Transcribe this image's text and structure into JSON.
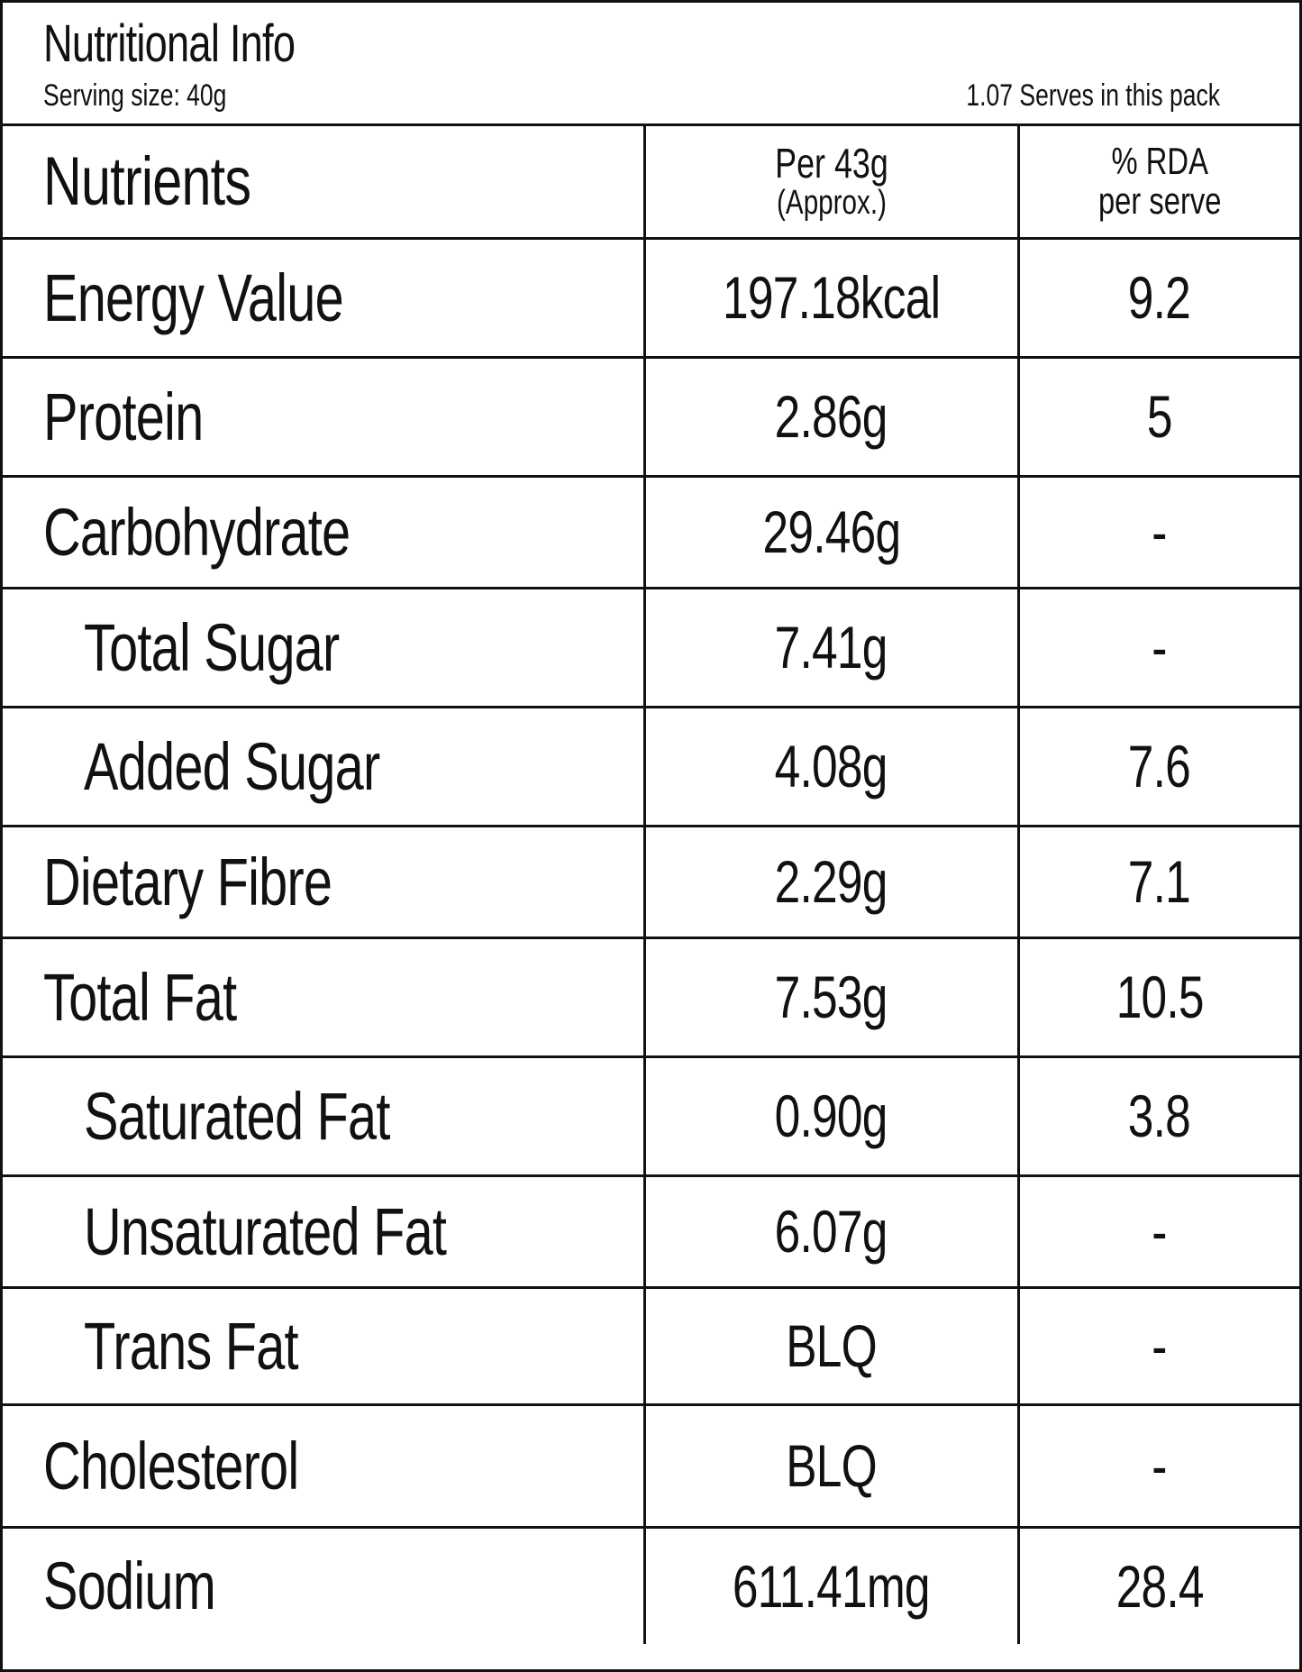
{
  "header": {
    "title": "Nutritional Info",
    "serving_size": "Serving  size: 40g",
    "serves": "1.07 Serves in this pack"
  },
  "columns": {
    "nutrients": "Nutrients",
    "per_line1": "Per 43g",
    "per_line2": "(Approx.)",
    "rda_line1": "% RDA",
    "rda_line2": "per serve"
  },
  "rows": [
    {
      "name": "Energy Value",
      "per": "197.18kcal",
      "rda": "9.2",
      "sub": false
    },
    {
      "name": "Protein",
      "per": "2.86g",
      "rda": "5",
      "sub": false
    },
    {
      "name": "Carbohydrate",
      "per": "29.46g",
      "rda": "-",
      "sub": false
    },
    {
      "name": "Total Sugar",
      "per": "7.41g",
      "rda": "-",
      "sub": true
    },
    {
      "name": "Added Sugar",
      "per": "4.08g",
      "rda": "7.6",
      "sub": true
    },
    {
      "name": "Dietary Fibre",
      "per": "2.29g",
      "rda": "7.1",
      "sub": false
    },
    {
      "name": "Total Fat",
      "per": "7.53g",
      "rda": "10.5",
      "sub": false
    },
    {
      "name": "Saturated Fat",
      "per": "0.90g",
      "rda": "3.8",
      "sub": true
    },
    {
      "name": "Unsaturated Fat",
      "per": "6.07g",
      "rda": "-",
      "sub": true
    },
    {
      "name": "Trans Fat",
      "per": "BLQ",
      "rda": "-",
      "sub": true
    },
    {
      "name": "Cholesterol",
      "per": "BLQ",
      "rda": "-",
      "sub": false
    },
    {
      "name": "Sodium",
      "per": "611.41mg",
      "rda": "28.4",
      "sub": false
    }
  ]
}
